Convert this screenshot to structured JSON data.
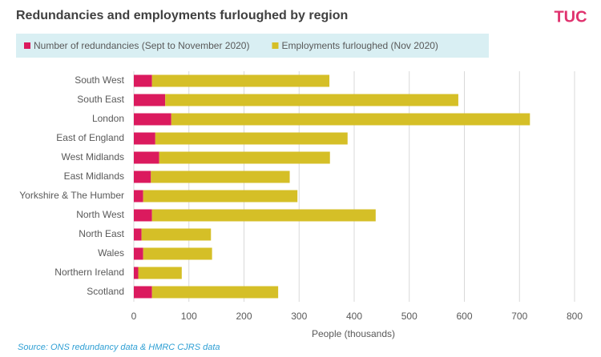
{
  "chart_data": {
    "type": "stacked_barh",
    "title": "Redundancies and employments furloughed by region",
    "logo": "TUC",
    "categories": [
      "South West",
      "South East",
      "London",
      "East of England",
      "West Midlands",
      "East Midlands",
      "Yorkshire  & The Humber",
      "North West",
      "North East",
      "Wales",
      "Northern Ireland",
      "Scotland"
    ],
    "series": [
      {
        "name": "Number of redundancies (Sept to November 2020)",
        "color": "#db1a5e",
        "values": [
          33,
          57,
          68,
          39,
          46,
          31,
          17,
          33,
          14,
          17,
          8,
          33
        ]
      },
      {
        "name": "Employments furloughed (Nov 2020)",
        "color": "#d5bf27",
        "values": [
          322,
          532,
          651,
          349,
          310,
          252,
          280,
          406,
          126,
          125,
          79,
          229
        ]
      }
    ],
    "xlim": [
      0,
      800
    ],
    "xticks": [
      0,
      100,
      200,
      300,
      400,
      500,
      600,
      700,
      800
    ],
    "xlabel": "People (thousands)",
    "grid": true,
    "source": "Source: ONS redundancy data  & HMRC CJRS data"
  }
}
